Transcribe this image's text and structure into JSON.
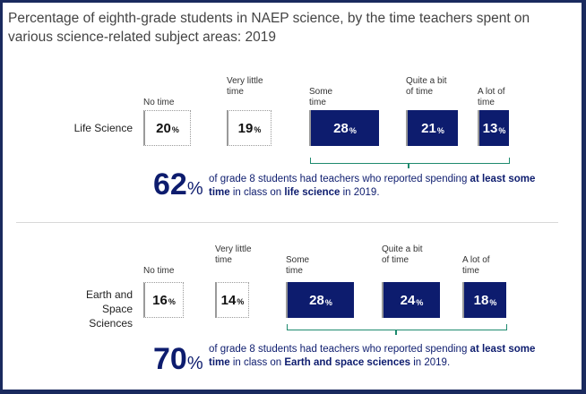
{
  "title": "Percentage of eighth-grade students in NAEP science, by the time teachers spent on various science-related subject areas: 2019",
  "pct_sign": "%",
  "colors": {
    "dark": "#0d1c6e",
    "bracket": "#1e8a6e",
    "frame": "#1a2a5e"
  },
  "chart_data": [
    {
      "type": "bar",
      "subject": "Life Science",
      "categories": [
        "No time",
        "Very little time",
        "Some time",
        "Quite a bit of time",
        "A lot of time"
      ],
      "values": [
        20,
        19,
        28,
        21,
        13
      ],
      "summary_value": "62",
      "summary_parts": [
        "of grade 8 students had teachers who reported spending ",
        "at least some time",
        " in class on ",
        "life science",
        " in 2019."
      ]
    },
    {
      "type": "bar",
      "subject": "Earth and Space Sciences",
      "categories": [
        "No time",
        "Very little time",
        "Some time",
        "Quite a bit of time",
        "A lot of time"
      ],
      "values": [
        16,
        14,
        28,
        24,
        18
      ],
      "summary_value": "70",
      "summary_parts": [
        "of grade 8 students had teachers who reported spending ",
        "at least some time",
        " in class on ",
        "Earth and space sciences",
        " in 2019."
      ]
    }
  ]
}
